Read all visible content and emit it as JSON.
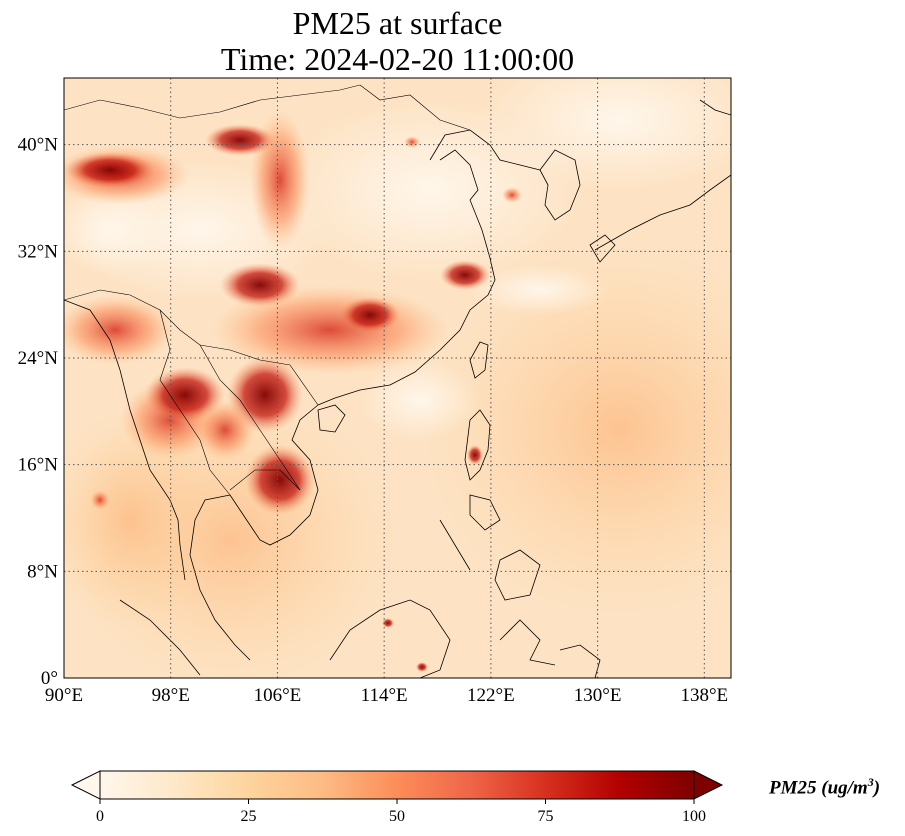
{
  "title": {
    "line1": "PM25 at surface",
    "line2": "Time: 2024-02-20 11:00:00"
  },
  "map": {
    "variable": "PM25",
    "projection": "PlateCarree",
    "lon_range": [
      90,
      140
    ],
    "lat_range": [
      0,
      45
    ],
    "gridlines": "dotted",
    "lon_ticks": [
      {
        "value": 90,
        "label": "90°E"
      },
      {
        "value": 98,
        "label": "98°E"
      },
      {
        "value": 106,
        "label": "106°E"
      },
      {
        "value": 114,
        "label": "114°E"
      },
      {
        "value": 122,
        "label": "122°E"
      },
      {
        "value": 130,
        "label": "130°E"
      },
      {
        "value": 138,
        "label": "138°E"
      }
    ],
    "lat_ticks": [
      {
        "value": 0,
        "label": "0°"
      },
      {
        "value": 8,
        "label": "8°N"
      },
      {
        "value": 16,
        "label": "16°N"
      },
      {
        "value": 24,
        "label": "24°N"
      },
      {
        "value": 32,
        "label": "32°N"
      },
      {
        "value": 40,
        "label": "40°N"
      }
    ],
    "colormap": "OrRd"
  },
  "colorbar": {
    "min": 0,
    "max": 100,
    "extend": "both",
    "ticks": [
      {
        "value": 0,
        "label": "0"
      },
      {
        "value": 25,
        "label": "25"
      },
      {
        "value": 50,
        "label": "50"
      },
      {
        "value": 75,
        "label": "75"
      },
      {
        "value": 100,
        "label": "100"
      }
    ],
    "label_main": "PM25 (ug/m",
    "label_sup": "3",
    "label_end": ")",
    "colors": [
      "#fff7ec",
      "#fee8c8",
      "#fdd49e",
      "#fdbb84",
      "#fc8d59",
      "#ef6548",
      "#d7301f",
      "#b30000",
      "#7f0000"
    ]
  }
}
